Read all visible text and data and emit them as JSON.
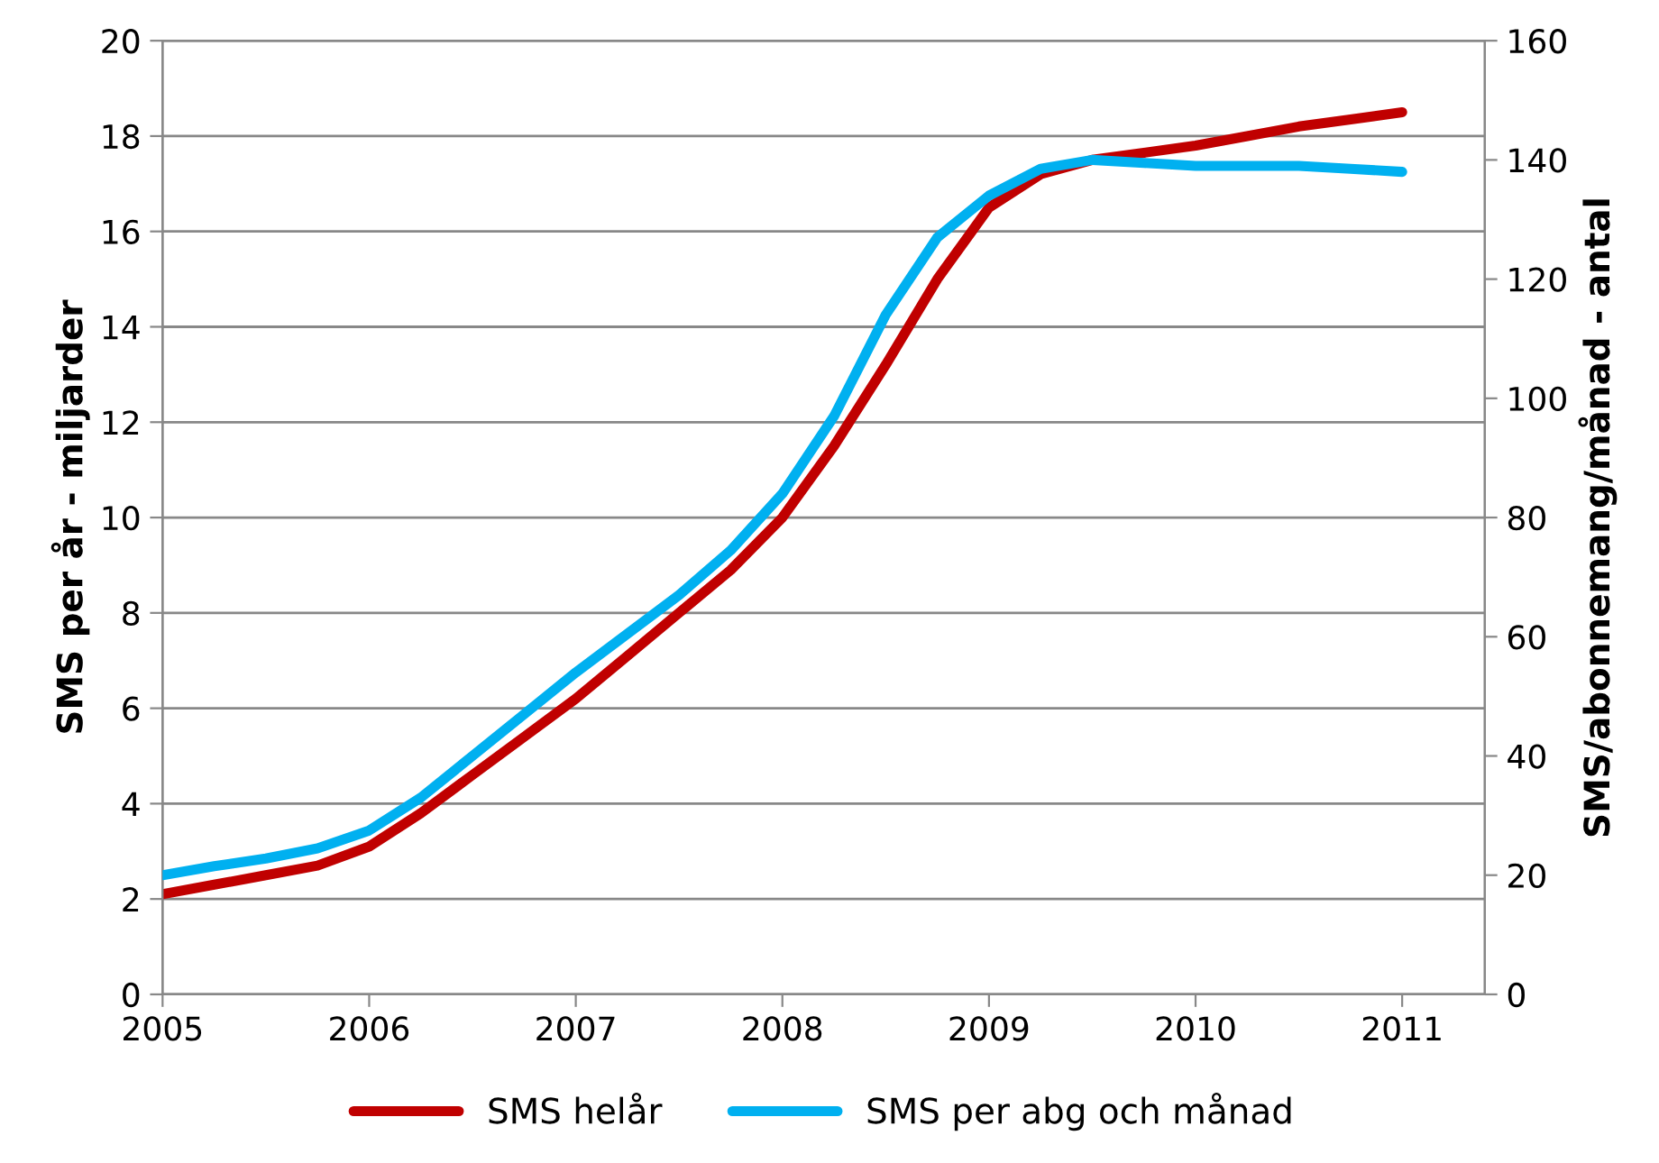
{
  "chart_data": {
    "type": "line",
    "x": [
      2005,
      2005.25,
      2005.5,
      2005.75,
      2006,
      2006.25,
      2006.5,
      2006.75,
      2007,
      2007.25,
      2007.5,
      2007.75,
      2008,
      2008.25,
      2008.5,
      2008.75,
      2009,
      2009.25,
      2009.5,
      2009.75,
      2010,
      2010.25,
      2010.5,
      2010.75,
      2011
    ],
    "series": [
      {
        "name": "SMS helår",
        "color": "#c00000",
        "axis": "y",
        "values": [
          2.1,
          2.3,
          2.5,
          2.7,
          3.1,
          3.8,
          4.6,
          5.4,
          6.2,
          7.1,
          8.0,
          8.9,
          10.0,
          11.5,
          13.2,
          15.0,
          16.5,
          17.2,
          17.5,
          17.65,
          17.8,
          18.0,
          18.2,
          18.35,
          18.5
        ]
      },
      {
        "name": "SMS per abg och månad",
        "color": "#00b0f0",
        "axis": "y2",
        "values": [
          20,
          21.5,
          22.8,
          24.5,
          27.5,
          33,
          40,
          47,
          54,
          60.5,
          67,
          74.5,
          84,
          97,
          114,
          127,
          134,
          138.5,
          140,
          139.5,
          139,
          139,
          139,
          138.5,
          138
        ]
      }
    ],
    "xlim": [
      2005,
      2011.4
    ],
    "xticks": [
      2005,
      2006,
      2007,
      2008,
      2009,
      2010,
      2011
    ],
    "ylim": [
      0,
      20
    ],
    "yticks": [
      0,
      2,
      4,
      6,
      8,
      10,
      12,
      14,
      16,
      18,
      20
    ],
    "y2lim": [
      0,
      160
    ],
    "y2ticks": [
      0,
      20,
      40,
      60,
      80,
      100,
      120,
      140,
      160
    ],
    "ylabel": "SMS per år - miljarder",
    "y2label": "SMS/abonnemang/månad - antal",
    "grid": "y",
    "legend": "bottom",
    "marker": "none",
    "line_style": "solid"
  }
}
